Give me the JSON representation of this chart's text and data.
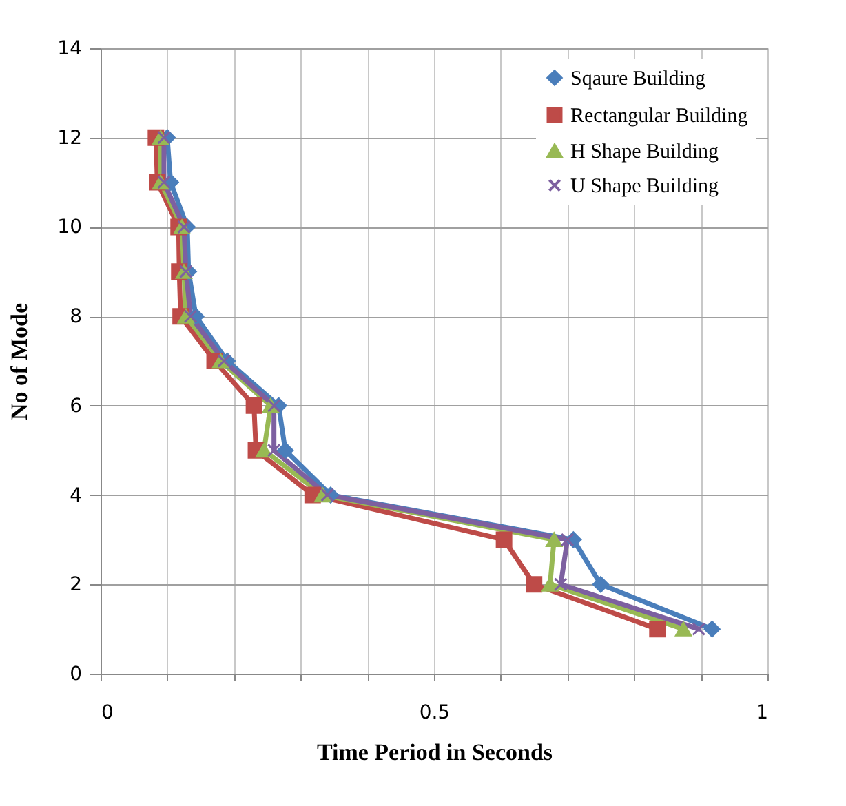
{
  "chart_data": {
    "type": "line",
    "xlabel": "Time Period in Seconds",
    "ylabel": "No  of Mode",
    "xlim": [
      0,
      1
    ],
    "ylim": [
      0,
      14
    ],
    "xticks": [
      0,
      {
        "value": 0.1,
        "label": null
      },
      {
        "value": 0.2,
        "label": null
      },
      {
        "value": 0.3,
        "label": null
      },
      {
        "value": 0.4,
        "label": null
      },
      0.5,
      {
        "value": 0.6,
        "label": null
      },
      {
        "value": 0.7,
        "label": null
      },
      {
        "value": 0.8,
        "label": null
      },
      {
        "value": 0.9,
        "label": null
      },
      1
    ],
    "yticks": [
      0,
      2,
      4,
      6,
      8,
      10,
      12,
      14
    ],
    "grid": true,
    "legend": "top right",
    "line_style": "solid",
    "series": [
      {
        "name": "Sqaure Building",
        "color": "#4a7ebb",
        "marker": "diamond",
        "x": [
          0.917,
          0.75,
          0.709,
          0.345,
          0.277,
          0.267,
          0.19,
          0.143,
          0.132,
          0.13,
          0.105,
          0.1
        ],
        "values": [
          1,
          2,
          3,
          4,
          5,
          6,
          7,
          8,
          9,
          10,
          11,
          12
        ]
      },
      {
        "name": "Rectangular Building",
        "color": "#be4b48",
        "marker": "square",
        "x": [
          0.835,
          0.65,
          0.605,
          0.318,
          0.233,
          0.23,
          0.171,
          0.12,
          0.118,
          0.117,
          0.085,
          0.083
        ],
        "values": [
          1,
          2,
          3,
          4,
          5,
          6,
          7,
          8,
          9,
          10,
          11,
          12
        ]
      },
      {
        "name": "H Shape Building",
        "color": "#98b954",
        "marker": "triangle",
        "x": [
          0.874,
          0.674,
          0.68,
          0.333,
          0.245,
          0.255,
          0.18,
          0.128,
          0.125,
          0.122,
          0.09,
          0.09
        ],
        "values": [
          1,
          2,
          3,
          4,
          5,
          6,
          7,
          8,
          9,
          10,
          11,
          12
        ]
      },
      {
        "name": "U Shape Building",
        "color": "#7d60a0",
        "marker": "cross",
        "x": [
          0.897,
          0.69,
          0.7,
          0.34,
          0.26,
          0.26,
          0.185,
          0.135,
          0.128,
          0.125,
          0.095,
          0.095
        ],
        "values": [
          1,
          2,
          3,
          4,
          5,
          6,
          7,
          8,
          9,
          10,
          11,
          12
        ]
      }
    ]
  }
}
